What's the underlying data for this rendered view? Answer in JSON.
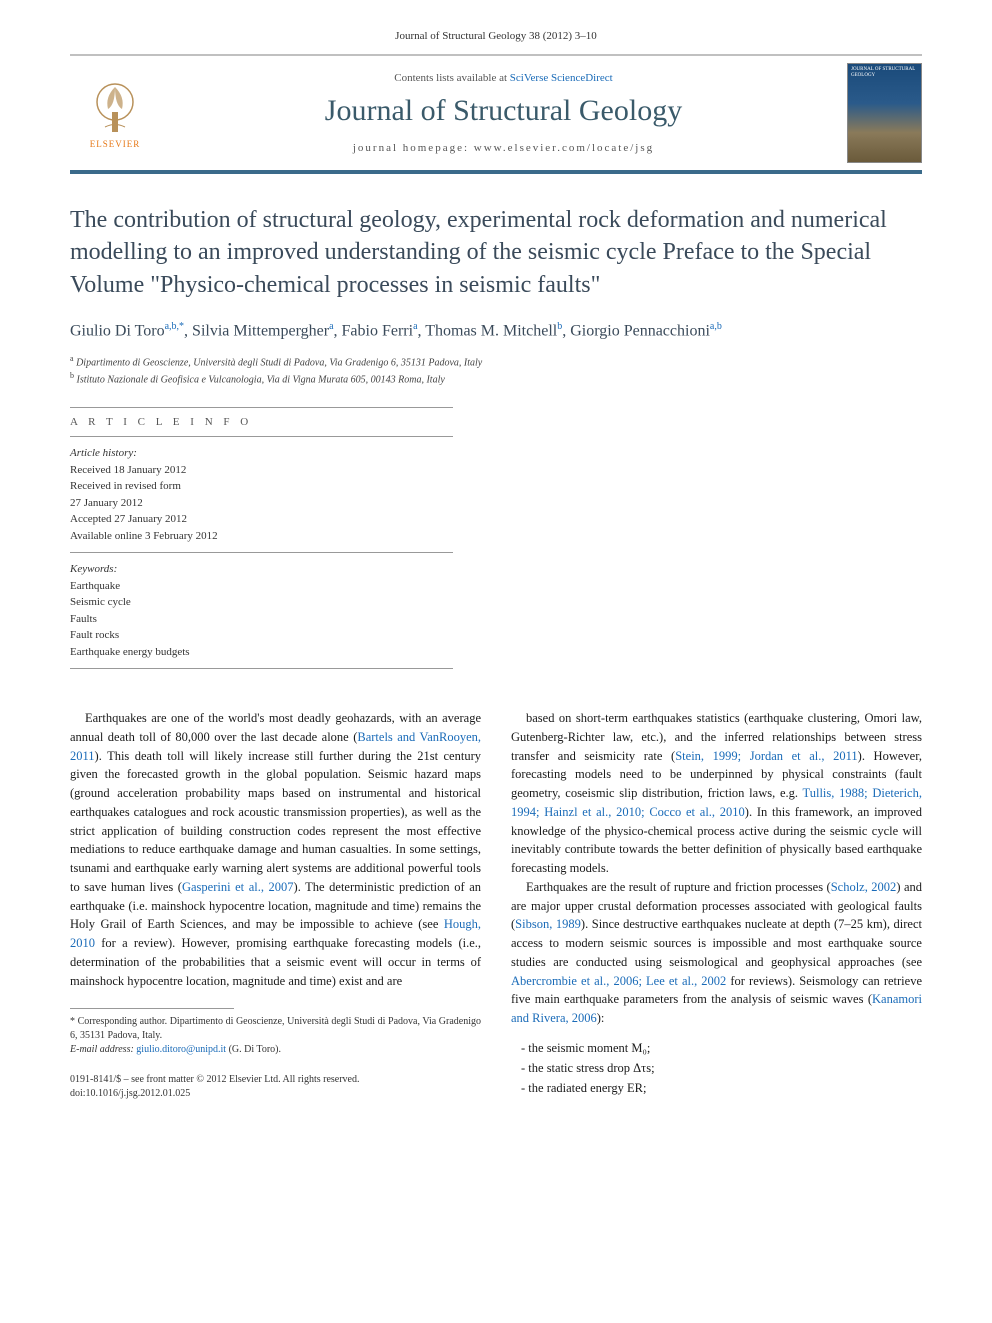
{
  "citation": "Journal of Structural Geology 38 (2012) 3–10",
  "header": {
    "contents_prefix": "Contents lists available at ",
    "contents_link": "SciVerse ScienceDirect",
    "journal_name": "Journal of Structural Geology",
    "homepage_prefix": "journal homepage: ",
    "homepage_url": "www.elsevier.com/locate/jsg",
    "publisher": "ELSEVIER",
    "cover_label": "JOURNAL OF STRUCTURAL GEOLOGY"
  },
  "title": "The contribution of structural geology, experimental rock deformation and numerical modelling to an improved understanding of the seismic cycle Preface to the Special Volume \"Physico-chemical processes in seismic faults\"",
  "authors_html": "Giulio Di Toro<sup>a,b,*</sup>, Silvia Mittempergher<sup>a</sup>, Fabio Ferri<sup>a</sup>, Thomas M. Mitchell<sup>b</sup>, Giorgio Pennacchioni<sup>a,b</sup>",
  "affiliations": [
    {
      "tag": "a",
      "text": "Dipartimento di Geoscienze, Università degli Studi di Padova, Via Gradenigo 6, 35131 Padova, Italy"
    },
    {
      "tag": "b",
      "text": "Istituto Nazionale di Geofisica e Vulcanologia, Via di Vigna Murata 605, 00143 Roma, Italy"
    }
  ],
  "article_info_header": "A R T I C L E   I N F O",
  "history": {
    "label": "Article history:",
    "lines": [
      "Received 18 January 2012",
      "Received in revised form",
      "27 January 2012",
      "Accepted 27 January 2012",
      "Available online 3 February 2012"
    ]
  },
  "keywords": {
    "label": "Keywords:",
    "items": [
      "Earthquake",
      "Seismic cycle",
      "Faults",
      "Fault rocks",
      "Earthquake energy budgets"
    ]
  },
  "body": {
    "col1": [
      "Earthquakes are one of the world's most deadly geohazards, with an average annual death toll of 80,000 over the last decade alone (<span class='ref-link'>Bartels and VanRooyen, 2011</span>). This death toll will likely increase still further during the 21st century given the forecasted growth in the global population. Seismic hazard maps (ground acceleration probability maps based on instrumental and historical earthquakes catalogues and rock acoustic transmission properties), as well as the strict application of building construction codes represent the most effective mediations to reduce earthquake damage and human casualties. In some settings, tsunami and earthquake early warning alert systems are additional powerful tools to save human lives (<span class='ref-link'>Gasperini et al., 2007</span>). The deterministic prediction of an earthquake (i.e. mainshock hypocentre location, magnitude and time) remains the Holy Grail of Earth Sciences, and may be impossible to achieve (see <span class='ref-link'>Hough, 2010</span> for a review). However, promising earthquake forecasting models (i.e., determination of the probabilities that a seismic event will occur in terms of mainshock hypocentre location, magnitude and time) exist and are"
    ],
    "col2": [
      "based on short-term earthquakes statistics (earthquake clustering, Omori law, Gutenberg-Richter law, etc.), and the inferred relationships between stress transfer and seismicity rate (<span class='ref-link'>Stein, 1999; Jordan et al., 2011</span>). However, forecasting models need to be underpinned by physical constraints (fault geometry, coseismic slip distribution, friction laws, e.g. <span class='ref-link'>Tullis, 1988; Dieterich, 1994; Hainzl et al., 2010; Cocco et al., 2010</span>). In this framework, an improved knowledge of the physico-chemical process active during the seismic cycle will inevitably contribute towards the better definition of physically based earthquake forecasting models.",
      "Earthquakes are the result of rupture and friction processes (<span class='ref-link'>Scholz, 2002</span>) and are major upper crustal deformation processes associated with geological faults (<span class='ref-link'>Sibson, 1989</span>). Since destructive earthquakes nucleate at depth (7–25 km), direct access to modern seismic sources is impossible and most earthquake source studies are conducted using seismological and geophysical approaches (see <span class='ref-link'>Abercrombie et al., 2006; Lee et al., 2002</span> for reviews). Seismology can retrieve five main earthquake parameters from the analysis of seismic waves (<span class='ref-link'>Kanamori and Rivera, 2006</span>):"
    ],
    "bullets": [
      "the seismic moment M₀;",
      "the static stress drop Δτs;",
      "the radiated energy ER;"
    ]
  },
  "footnotes": {
    "corresponding": "* Corresponding author. Dipartimento di Geoscienze, Università degli Studi di Padova, Via Gradenigo 6, 35131 Padova, Italy.",
    "email_label": "E-mail address: ",
    "email": "giulio.ditoro@unipd.it",
    "email_name": " (G. Di Toro)."
  },
  "footer": {
    "line1": "0191-8141/$ – see front matter © 2012 Elsevier Ltd. All rights reserved.",
    "line2": "doi:10.1016/j.jsg.2012.01.025"
  },
  "colors": {
    "link": "#1a6bb8",
    "bar_bottom": "#3a6a8a",
    "publisher": "#e67817",
    "title_text": "#3a4a5a"
  }
}
